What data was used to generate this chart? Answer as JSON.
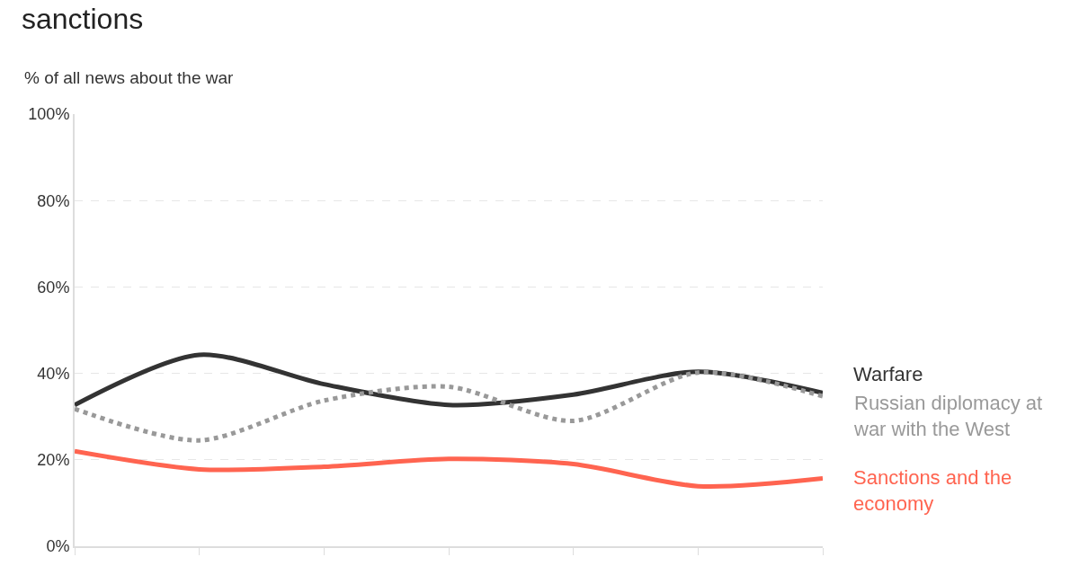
{
  "chart_data": {
    "type": "line",
    "title": "sanctions",
    "ylabel": "% of all news about the war",
    "categories": [
      null,
      null,
      null,
      null,
      null,
      null,
      null
    ],
    "series": [
      {
        "name": "Warfare",
        "color": "#333333",
        "line_style": "solid",
        "values": [
          32.7,
          44.3,
          37.5,
          32.7,
          35.1,
          40.4,
          35.5
        ]
      },
      {
        "name": "Russian diplomacy at war with the West",
        "color": "#999999",
        "line_style": "dotted",
        "values": [
          31.8,
          24.5,
          33.7,
          36.9,
          29.0,
          40.2,
          34.7
        ]
      },
      {
        "name": "Sanctions and the economy",
        "color": "#ff6450",
        "line_style": "solid",
        "values": [
          22.0,
          17.8,
          18.4,
          20.2,
          19.0,
          13.9,
          15.7
        ]
      }
    ],
    "ylim": [
      0,
      100
    ],
    "yticks": [
      {
        "value": 0,
        "label": "0%"
      },
      {
        "value": 20,
        "label": "20%"
      },
      {
        "value": 40,
        "label": "40%"
      },
      {
        "value": 60,
        "label": "60%"
      },
      {
        "value": 80,
        "label": "80%"
      },
      {
        "value": 100,
        "label": "100%"
      }
    ],
    "grid": "y",
    "legend": false,
    "marker": "none",
    "tick_labels": "y"
  }
}
